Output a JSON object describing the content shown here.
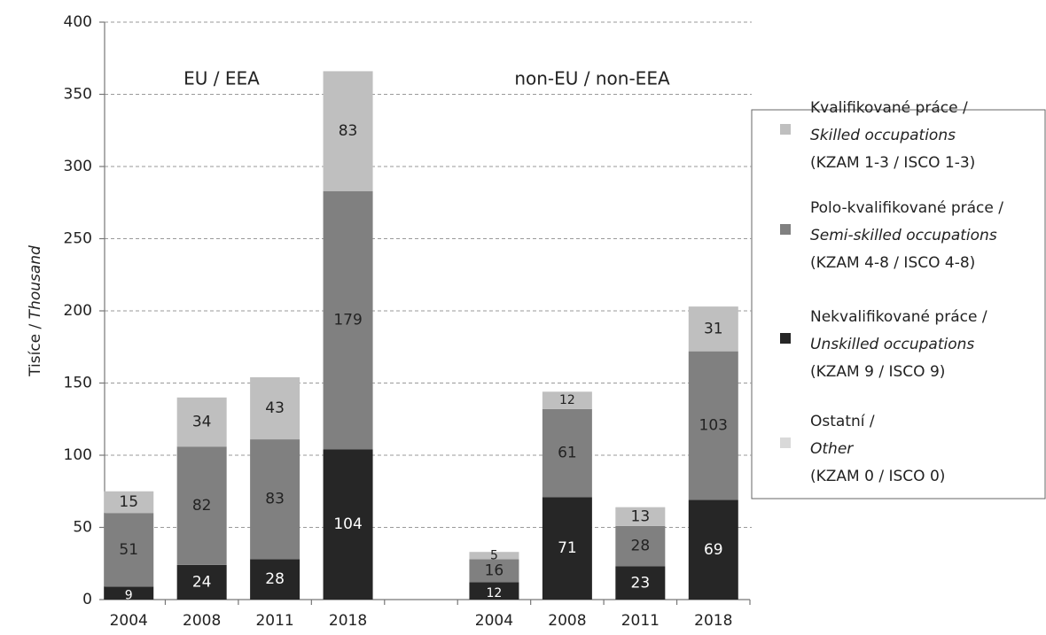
{
  "chart_data": {
    "type": "stacked-bar",
    "y_label": {
      "cz": "Tisíce /",
      "en": "Thousand"
    },
    "annotations": [
      "EU / EEA",
      "non-EU / non-EEA"
    ],
    "categories": [
      "2004",
      "2008",
      "2011",
      "2018",
      null,
      "2004",
      "2008",
      "2011",
      "2018"
    ],
    "series": [
      {
        "name": "Nekvalifikované práce /",
        "name_en": "Unskilled occupations",
        "note": "(KZAM 9 / ISCO 9)",
        "color": "#262626",
        "values": [
          9,
          24,
          28,
          104,
          null,
          12,
          71,
          23,
          69
        ]
      },
      {
        "name": "Polo-kvalifikované práce /",
        "name_en": "Semi-skilled occupations",
        "note": "(KZAM 4-8 / ISCO 4-8)",
        "color": "#808080",
        "values": [
          51,
          82,
          83,
          179,
          null,
          16,
          61,
          28,
          103
        ]
      },
      {
        "name": "Kvalifikované práce /",
        "name_en": "Skilled occupations",
        "note": "(KZAM 1-3 / ISCO 1-3)",
        "color": "#bfbfbf",
        "values": [
          15,
          34,
          43,
          83,
          null,
          5,
          12,
          13,
          31
        ]
      },
      {
        "name": "Ostatní /",
        "name_en": "Other",
        "note": "(KZAM 0 / ISCO 0)",
        "color": "#d9d9d9",
        "values": [
          null,
          null,
          null,
          null,
          null,
          null,
          null,
          null,
          null
        ]
      }
    ],
    "legend_order": [
      2,
      1,
      0,
      3
    ],
    "ylim": [
      0,
      400
    ],
    "yticks": [
      0,
      50,
      100,
      150,
      200,
      250,
      300,
      350,
      400
    ],
    "grid": true
  }
}
